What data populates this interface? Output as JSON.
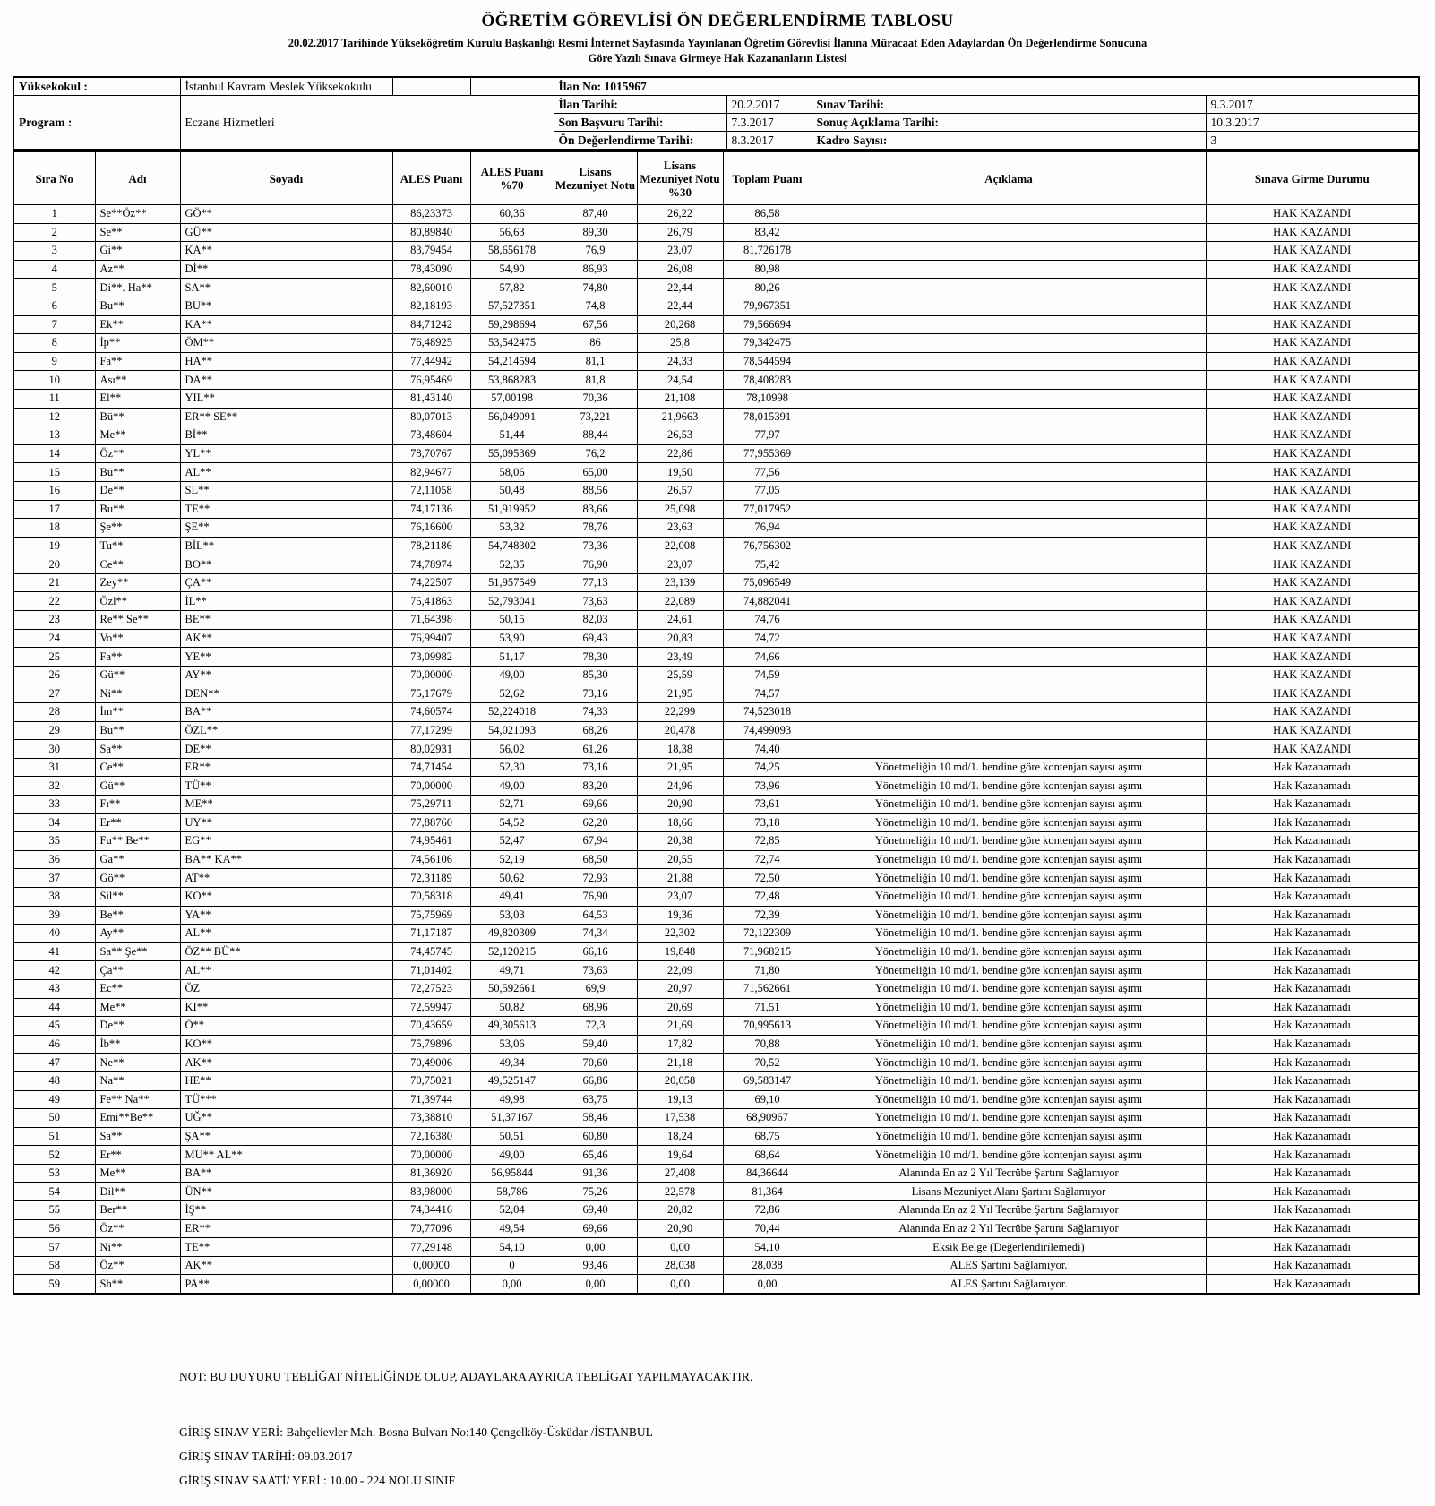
{
  "title": "ÖĞRETİM GÖREVLİSİ ÖN DEĞERLENDİRME TABLOSU",
  "subtitle_line1": "20.02.2017 Tarihinde Yükseköğretim Kurulu Başkanlığı Resmi İnternet Sayfasında Yayınlanan Öğretim Görevlisi İlanına Müracaat Eden Adaylardan Ön Değerlendirme Sonucuna",
  "subtitle_line2": "Göre Yazılı Sınava Girmeye Hak Kazananların Listesi",
  "info": {
    "yuksekokul_label": "Yüksekokul :",
    "yuksekokul_value": "İstanbul Kavram Meslek Yüksekokulu",
    "program_label": "Program :",
    "program_value": "Eczane Hizmetleri",
    "ilan_no": "İlan No: 1015967",
    "ilan_tarihi_label": "İlan Tarihi:",
    "ilan_tarihi_value": "20.2.2017",
    "sinav_tarihi_label": "Sınav Tarihi:",
    "sinav_tarihi_value": "9.3.2017",
    "son_basvuru_label": "Son Başvuru Tarihi:",
    "son_basvuru_value": "7.3.2017",
    "sonuc_aciklama_label": "Sonuç Açıklama Tarihi:",
    "sonuc_aciklama_value": "10.3.2017",
    "on_degerlendirme_label": "Ön Değerlendirme Tarihi:",
    "on_degerlendirme_value": "8.3.2017",
    "kadro_label": "Kadro Sayısı:",
    "kadro_value": "3"
  },
  "table": {
    "headers": [
      "Sıra No",
      "Adı",
      "Soyadı",
      "ALES Puanı",
      "ALES Puanı %70",
      "Lisans Mezuniyet Notu",
      "Lisans Mezuniyet Notu %30",
      "Toplam Puanı",
      "Açıklama",
      "Sınava Girme Durumu"
    ],
    "rows": [
      [
        "1",
        "Se**Öz**",
        "GÖ**",
        "86,23373",
        "60,36",
        "87,40",
        "26,22",
        "86,58",
        "",
        "HAK KAZANDI"
      ],
      [
        "2",
        "Se**",
        "GÜ**",
        "80,89840",
        "56,63",
        "89,30",
        "26,79",
        "83,42",
        "",
        "HAK KAZANDI"
      ],
      [
        "3",
        "Gi**",
        "KA**",
        "83,79454",
        "58,656178",
        "76,9",
        "23,07",
        "81,726178",
        "",
        "HAK KAZANDI"
      ],
      [
        "4",
        "Az**",
        "Dİ**",
        "78,43090",
        "54,90",
        "86,93",
        "26,08",
        "80,98",
        "",
        "HAK KAZANDI"
      ],
      [
        "5",
        "Di**. Ha**",
        "SA**",
        "82,60010",
        "57,82",
        "74,80",
        "22,44",
        "80,26",
        "",
        "HAK KAZANDI"
      ],
      [
        "6",
        "Bu**",
        "BU**",
        "82,18193",
        "57,527351",
        "74,8",
        "22,44",
        "79,967351",
        "",
        "HAK KAZANDI"
      ],
      [
        "7",
        "Ek**",
        "KA**",
        "84,71242",
        "59,298694",
        "67,56",
        "20,268",
        "79,566694",
        "",
        "HAK KAZANDI"
      ],
      [
        "8",
        "İp**",
        "ÖM**",
        "76,48925",
        "53,542475",
        "86",
        "25,8",
        "79,342475",
        "",
        "HAK KAZANDI"
      ],
      [
        "9",
        "Fa**",
        "HA**",
        "77,44942",
        "54,214594",
        "81,1",
        "24,33",
        "78,544594",
        "",
        "HAK KAZANDI"
      ],
      [
        "10",
        "Ası**",
        "DA**",
        "76,95469",
        "53,868283",
        "81,8",
        "24,54",
        "78,408283",
        "",
        "HAK KAZANDI"
      ],
      [
        "11",
        "El**",
        "YIL**",
        "81,43140",
        "57,00198",
        "70,36",
        "21,108",
        "78,10998",
        "",
        "HAK KAZANDI"
      ],
      [
        "12",
        "Bü**",
        "ER** SE**",
        "80,07013",
        "56,049091",
        "73,221",
        "21,9663",
        "78,015391",
        "",
        "HAK KAZANDI"
      ],
      [
        "13",
        "Me**",
        "Bİ**",
        "73,48604",
        "51,44",
        "88,44",
        "26,53",
        "77,97",
        "",
        "HAK KAZANDI"
      ],
      [
        "14",
        "Öz**",
        "YL**",
        "78,70767",
        "55,095369",
        "76,2",
        "22,86",
        "77,955369",
        "",
        "HAK KAZANDI"
      ],
      [
        "15",
        "Bü**",
        "AL**",
        "82,94677",
        "58,06",
        "65,00",
        "19,50",
        "77,56",
        "",
        "HAK KAZANDI"
      ],
      [
        "16",
        "De**",
        "SL**",
        "72,11058",
        "50,48",
        "88,56",
        "26,57",
        "77,05",
        "",
        "HAK KAZANDI"
      ],
      [
        "17",
        "Bu**",
        "TE**",
        "74,17136",
        "51,919952",
        "83,66",
        "25,098",
        "77,017952",
        "",
        "HAK KAZANDI"
      ],
      [
        "18",
        "Şe**",
        "ŞE**",
        "76,16600",
        "53,32",
        "78,76",
        "23,63",
        "76,94",
        "",
        "HAK KAZANDI"
      ],
      [
        "19",
        "Tu**",
        "BİL**",
        "78,21186",
        "54,748302",
        "73,36",
        "22,008",
        "76,756302",
        "",
        "HAK KAZANDI"
      ],
      [
        "20",
        "Ce**",
        "BO**",
        "74,78974",
        "52,35",
        "76,90",
        "23,07",
        "75,42",
        "",
        "HAK KAZANDI"
      ],
      [
        "21",
        "Zey**",
        "ÇA**",
        "74,22507",
        "51,957549",
        "77,13",
        "23,139",
        "75,096549",
        "",
        "HAK KAZANDI"
      ],
      [
        "22",
        "Özl**",
        "İL**",
        "75,41863",
        "52,793041",
        "73,63",
        "22,089",
        "74,882041",
        "",
        "HAK KAZANDI"
      ],
      [
        "23",
        "Re** Se**",
        "BE**",
        "71,64398",
        "50,15",
        "82,03",
        "24,61",
        "74,76",
        "",
        "HAK KAZANDI"
      ],
      [
        "24",
        "Vo**",
        "AK**",
        "76,99407",
        "53,90",
        "69,43",
        "20,83",
        "74,72",
        "",
        "HAK KAZANDI"
      ],
      [
        "25",
        "Fa**",
        "YE**",
        "73,09982",
        "51,17",
        "78,30",
        "23,49",
        "74,66",
        "",
        "HAK KAZANDI"
      ],
      [
        "26",
        "Gü**",
        "AY**",
        "70,00000",
        "49,00",
        "85,30",
        "25,59",
        "74,59",
        "",
        "HAK KAZANDI"
      ],
      [
        "27",
        "Ni**",
        "DEN**",
        "75,17679",
        "52,62",
        "73,16",
        "21,95",
        "74,57",
        "",
        "HAK KAZANDI"
      ],
      [
        "28",
        "İm**",
        "BA**",
        "74,60574",
        "52,224018",
        "74,33",
        "22,299",
        "74,523018",
        "",
        "HAK KAZANDI"
      ],
      [
        "29",
        "Bu**",
        "ÖZL**",
        "77,17299",
        "54,021093",
        "68,26",
        "20,478",
        "74,499093",
        "",
        "HAK KAZANDI"
      ],
      [
        "30",
        "Sa**",
        "DE**",
        "80,02931",
        "56,02",
        "61,26",
        "18,38",
        "74,40",
        "",
        "HAK KAZANDI"
      ],
      [
        "31",
        "Ce**",
        "ER**",
        "74,71454",
        "52,30",
        "73,16",
        "21,95",
        "74,25",
        "Yönetmeliğin 10 md/1. bendine göre kontenjan sayısı aşımı",
        "Hak Kazanamadı"
      ],
      [
        "32",
        "Gü**",
        "TÜ**",
        "70,00000",
        "49,00",
        "83,20",
        "24,96",
        "73,96",
        "Yönetmeliğin 10 md/1. bendine göre kontenjan sayısı aşımı",
        "Hak Kazanamadı"
      ],
      [
        "33",
        "Fı**",
        "ME**",
        "75,29711",
        "52,71",
        "69,66",
        "20,90",
        "73,61",
        "Yönetmeliğin 10 md/1. bendine göre kontenjan sayısı aşımı",
        "Hak Kazanamadı"
      ],
      [
        "34",
        "Er**",
        "UY**",
        "77,88760",
        "54,52",
        "62,20",
        "18,66",
        "73,18",
        "Yönetmeliğin 10 md/1. bendine göre kontenjan sayısı aşımı",
        "Hak Kazanamadı"
      ],
      [
        "35",
        "Fu** Be**",
        "EG**",
        "74,95461",
        "52,47",
        "67,94",
        "20,38",
        "72,85",
        "Yönetmeliğin 10 md/1. bendine göre kontenjan sayısı aşımı",
        "Hak Kazanamadı"
      ],
      [
        "36",
        "Ga**",
        "BA** KA**",
        "74,56106",
        "52,19",
        "68,50",
        "20,55",
        "72,74",
        "Yönetmeliğin 10 md/1. bendine göre kontenjan sayısı aşımı",
        "Hak Kazanamadı"
      ],
      [
        "37",
        "Gö**",
        "AT**",
        "72,31189",
        "50,62",
        "72,93",
        "21,88",
        "72,50",
        "Yönetmeliğin 10 md/1. bendine göre kontenjan sayısı aşımı",
        "Hak Kazanamadı"
      ],
      [
        "38",
        "Sil**",
        "KO**",
        "70,58318",
        "49,41",
        "76,90",
        "23,07",
        "72,48",
        "Yönetmeliğin 10 md/1. bendine göre kontenjan sayısı aşımı",
        "Hak Kazanamadı"
      ],
      [
        "39",
        "Be**",
        "YA**",
        "75,75969",
        "53,03",
        "64,53",
        "19,36",
        "72,39",
        "Yönetmeliğin 10 md/1. bendine göre kontenjan sayısı aşımı",
        "Hak Kazanamadı"
      ],
      [
        "40",
        "Ay**",
        "AL**",
        "71,17187",
        "49,820309",
        "74,34",
        "22,302",
        "72,122309",
        "Yönetmeliğin 10 md/1. bendine göre kontenjan sayısı aşımı",
        "Hak Kazanamadı"
      ],
      [
        "41",
        "Sa** Şe**",
        "ÖZ** BÜ**",
        "74,45745",
        "52,120215",
        "66,16",
        "19,848",
        "71,968215",
        "Yönetmeliğin 10 md/1. bendine göre kontenjan sayısı aşımı",
        "Hak Kazanamadı"
      ],
      [
        "42",
        "Ça**",
        "AL**",
        "71,01402",
        "49,71",
        "73,63",
        "22,09",
        "71,80",
        "Yönetmeliğin 10 md/1. bendine göre kontenjan sayısı aşımı",
        "Hak Kazanamadı"
      ],
      [
        "43",
        "Ec**",
        "ÖZ",
        "72,27523",
        "50,592661",
        "69,9",
        "20,97",
        "71,562661",
        "Yönetmeliğin 10 md/1. bendine göre kontenjan sayısı aşımı",
        "Hak Kazanamadı"
      ],
      [
        "44",
        "Me**",
        "KI**",
        "72,59947",
        "50,82",
        "68,96",
        "20,69",
        "71,51",
        "Yönetmeliğin 10 md/1. bendine göre kontenjan sayısı aşımı",
        "Hak Kazanamadı"
      ],
      [
        "45",
        "De**",
        "Ö**",
        "70,43659",
        "49,305613",
        "72,3",
        "21,69",
        "70,995613",
        "Yönetmeliğin 10 md/1. bendine göre kontenjan sayısı aşımı",
        "Hak Kazanamadı"
      ],
      [
        "46",
        "İb**",
        "KO**",
        "75,79896",
        "53,06",
        "59,40",
        "17,82",
        "70,88",
        "Yönetmeliğin 10 md/1. bendine göre kontenjan sayısı aşımı",
        "Hak Kazanamadı"
      ],
      [
        "47",
        "Ne**",
        "AK**",
        "70,49006",
        "49,34",
        "70,60",
        "21,18",
        "70,52",
        "Yönetmeliğin 10 md/1. bendine göre kontenjan sayısı aşımı",
        "Hak Kazanamadı"
      ],
      [
        "48",
        "Na**",
        "HE**",
        "70,75021",
        "49,525147",
        "66,86",
        "20,058",
        "69,583147",
        "Yönetmeliğin 10 md/1. bendine göre kontenjan sayısı aşımı",
        "Hak Kazanamadı"
      ],
      [
        "49",
        "Fe** Na**",
        "TÜ***",
        "71,39744",
        "49,98",
        "63,75",
        "19,13",
        "69,10",
        "Yönetmeliğin 10 md/1. bendine göre kontenjan sayısı aşımı",
        "Hak Kazanamadı"
      ],
      [
        "50",
        "Emi**Be**",
        "UĞ**",
        "73,38810",
        "51,37167",
        "58,46",
        "17,538",
        "68,90967",
        "Yönetmeliğin 10 md/1. bendine göre kontenjan sayısı aşımı",
        "Hak Kazanamadı"
      ],
      [
        "51",
        "Sa**",
        "ŞA**",
        "72,16380",
        "50,51",
        "60,80",
        "18,24",
        "68,75",
        "Yönetmeliğin 10 md/1. bendine göre kontenjan sayısı aşımı",
        "Hak Kazanamadı"
      ],
      [
        "52",
        "Er**",
        "MU** AL**",
        "70,00000",
        "49,00",
        "65,46",
        "19,64",
        "68,64",
        "Yönetmeliğin 10 md/1. bendine göre kontenjan sayısı aşımı",
        "Hak Kazanamadı"
      ],
      [
        "53",
        "Me**",
        "BA**",
        "81,36920",
        "56,95844",
        "91,36",
        "27,408",
        "84,36644",
        "Alanında En az 2 Yıl Tecrübe Şartını Sağlamıyor",
        "Hak Kazanamadı"
      ],
      [
        "54",
        "Dil**",
        "ÜN**",
        "83,98000",
        "58,786",
        "75,26",
        "22,578",
        "81,364",
        "Lisans Mezuniyet Alanı Şartını Sağlamıyor",
        "Hak Kazanamadı"
      ],
      [
        "55",
        "Ber**",
        "İŞ**",
        "74,34416",
        "52,04",
        "69,40",
        "20,82",
        "72,86",
        "Alanında En az 2 Yıl Tecrübe Şartını Sağlamıyor",
        "Hak Kazanamadı"
      ],
      [
        "56",
        "Öz**",
        "ER**",
        "70,77096",
        "49,54",
        "69,66",
        "20,90",
        "70,44",
        "Alanında En az 2 Yıl Tecrübe Şartını Sağlamıyor",
        "Hak Kazanamadı"
      ],
      [
        "57",
        "Ni**",
        "TE**",
        "77,29148",
        "54,10",
        "0,00",
        "0,00",
        "54,10",
        "Eksik Belge (Değerlendirilemedi)",
        "Hak Kazanamadı"
      ],
      [
        "58",
        "Öz**",
        "AK**",
        "0,00000",
        "0",
        "93,46",
        "28,038",
        "28,038",
        "ALES Şartını Sağlamıyor.",
        "Hak Kazanamadı"
      ],
      [
        "59",
        "Sh**",
        "PA**",
        "0,00000",
        "0,00",
        "0,00",
        "0,00",
        "0,00",
        "ALES Şartını Sağlamıyor.",
        "Hak Kazanamadı"
      ]
    ]
  },
  "notes": {
    "announcement": "NOT: BU DUYURU TEBLİĞAT NİTELİĞİNDE OLUP, ADAYLARA AYRICA TEBLİGAT YAPILMAYACAKTIR.",
    "exam_place": "GİRİŞ SINAV YERİ: Bahçelievler Mah. Bosna Bulvarı No:140 Çengelköy-Üsküdar /İSTANBUL",
    "exam_date": "GİRİŞ SINAV TARİHİ: 09.03.2017",
    "exam_time": "GİRİŞ SINAV SAATİ/ YERİ : 10.00 - 224 NOLU SINIF"
  }
}
